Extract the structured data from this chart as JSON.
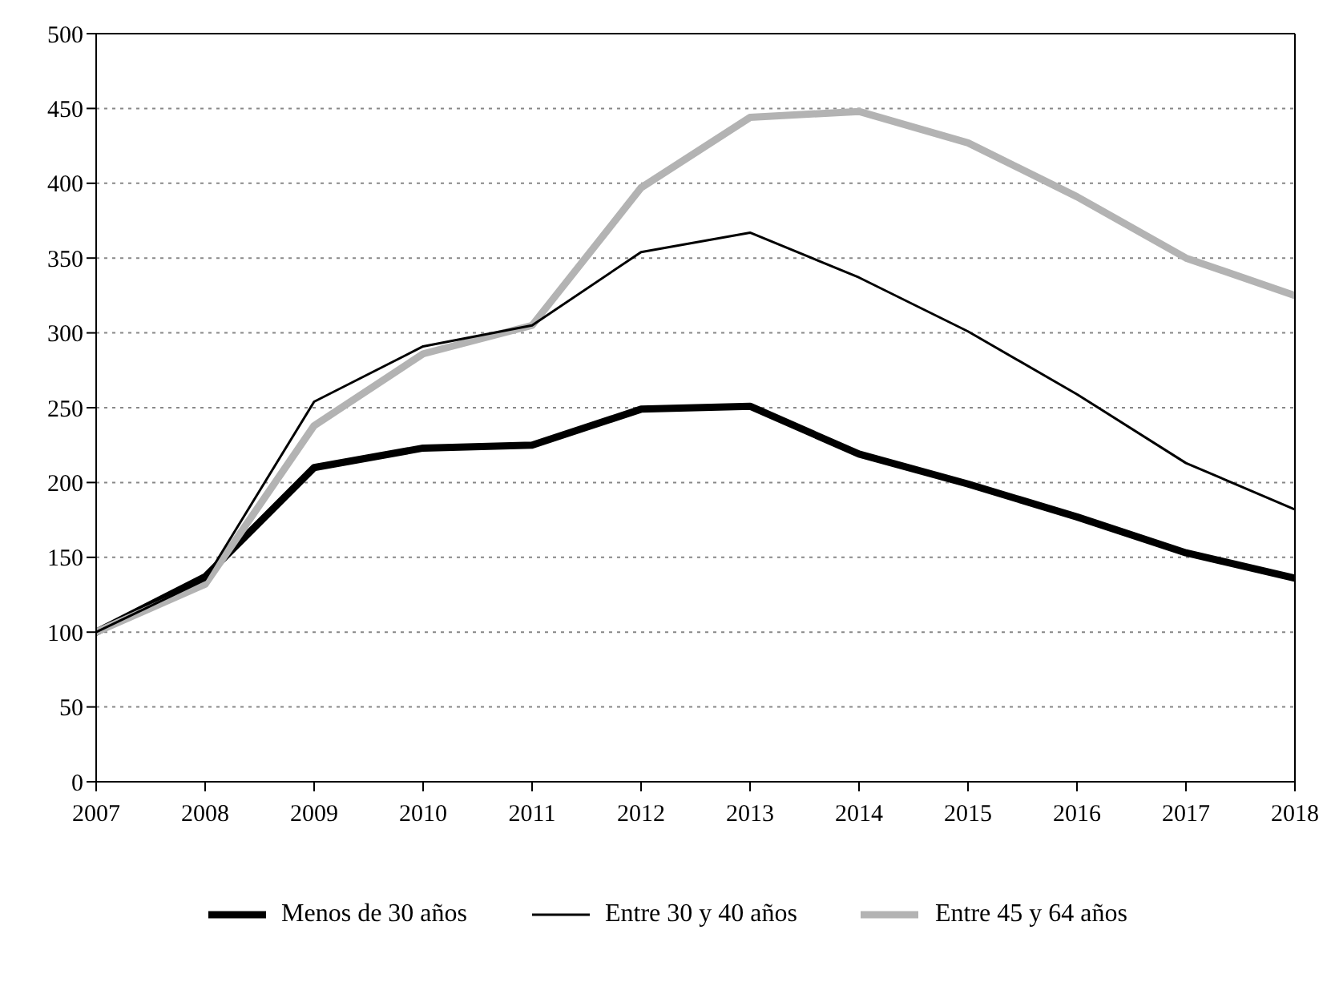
{
  "chart_data": {
    "type": "line",
    "x": [
      2007,
      2008,
      2009,
      2010,
      2011,
      2012,
      2013,
      2014,
      2015,
      2016,
      2017,
      2018
    ],
    "series": [
      {
        "name": "Menos de 30 años",
        "color": "#000000",
        "values": [
          100,
          137,
          210,
          223,
          225,
          249,
          251,
          219,
          199,
          177,
          153,
          136
        ]
      },
      {
        "name": "Entre 30 y 40 años",
        "color": "#000000",
        "values": [
          100,
          135,
          254,
          291,
          305,
          354,
          367,
          337,
          301,
          259,
          213,
          182
        ]
      },
      {
        "name": "Entre 45 y 64 años",
        "color": "#b3b3b3",
        "values": [
          100,
          132,
          238,
          286,
          305,
          397,
          444,
          448,
          427,
          391,
          350,
          325
        ]
      }
    ],
    "xlim": [
      2007,
      2018
    ],
    "xticks": [
      2007,
      2008,
      2009,
      2010,
      2011,
      2012,
      2013,
      2014,
      2015,
      2016,
      2017,
      2018
    ],
    "ylim": [
      0,
      500
    ],
    "yticks": [
      0,
      50,
      100,
      150,
      200,
      250,
      300,
      350,
      400,
      450,
      500
    ],
    "grid": "y",
    "legend": "bottom",
    "marker": "none",
    "line_style": "solid"
  }
}
